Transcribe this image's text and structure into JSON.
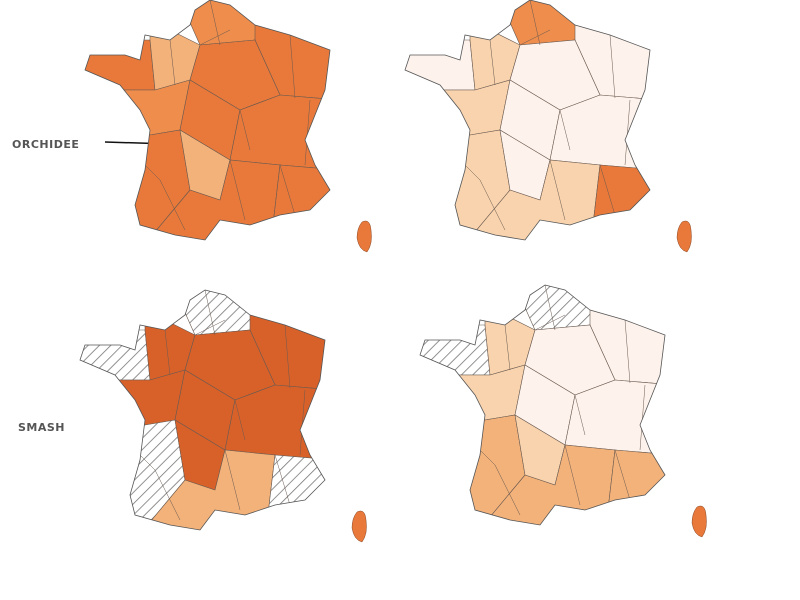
{
  "labels": {
    "orchidee": "ORCHIDEE",
    "smash": "SMASH"
  }
}
